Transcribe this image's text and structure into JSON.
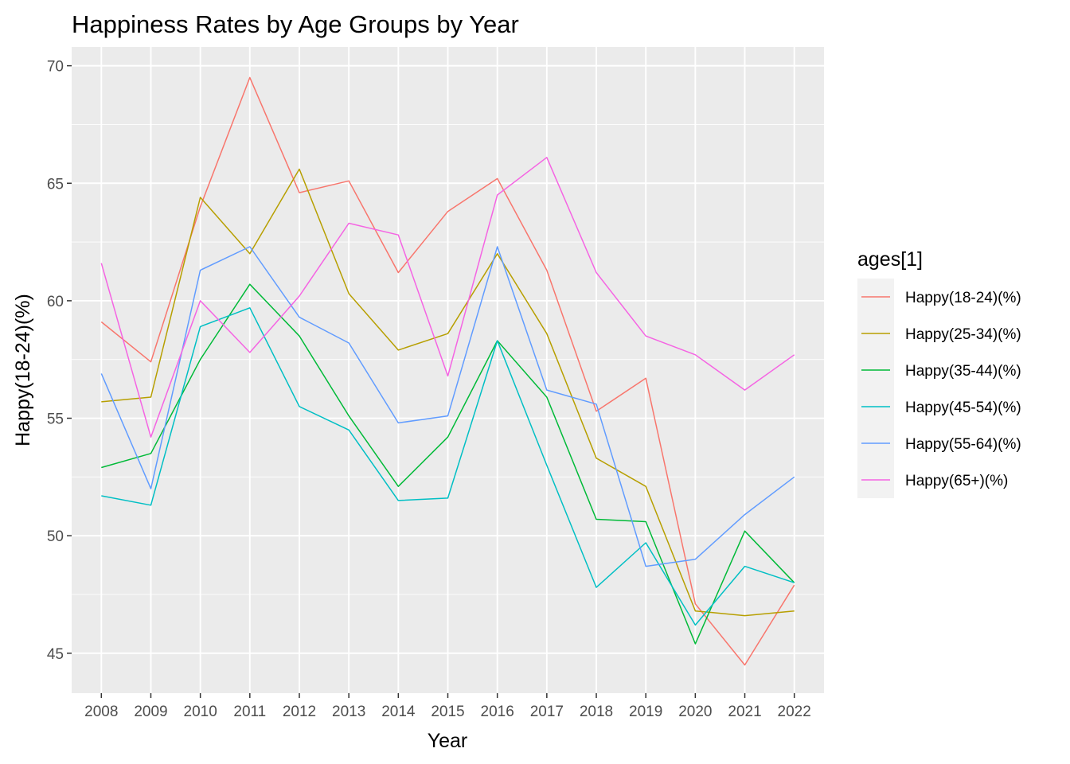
{
  "chart_data": {
    "type": "line",
    "title": "Happiness Rates by Age Groups by Year",
    "xlabel": "Year",
    "ylabel": "Happy(18-24)(%)",
    "x": [
      2008,
      2009,
      2010,
      2011,
      2012,
      2013,
      2014,
      2015,
      2016,
      2017,
      2018,
      2019,
      2020,
      2021,
      2022
    ],
    "xlim": [
      2007.4,
      2022.6
    ],
    "ylim": [
      43.3,
      70.8
    ],
    "y_ticks": [
      45,
      50,
      55,
      60,
      65,
      70
    ],
    "grid": true,
    "legend": {
      "title": "ages[1]",
      "position": "right"
    },
    "series": [
      {
        "name": "Happy(18-24)(%)",
        "color": "#F8766D",
        "values": [
          59.1,
          57.4,
          64.0,
          69.5,
          64.6,
          65.1,
          61.2,
          63.8,
          65.2,
          61.3,
          55.3,
          56.7,
          47.1,
          44.5,
          47.9
        ]
      },
      {
        "name": "Happy(25-34)(%)",
        "color": "#B79F00",
        "values": [
          55.7,
          55.9,
          64.4,
          62.0,
          65.6,
          60.3,
          57.9,
          58.6,
          62.0,
          58.6,
          53.3,
          52.1,
          46.8,
          46.6,
          46.8
        ]
      },
      {
        "name": "Happy(35-44)(%)",
        "color": "#00BA38",
        "values": [
          52.9,
          53.5,
          57.5,
          60.7,
          58.5,
          55.1,
          52.1,
          54.2,
          58.3,
          55.9,
          50.7,
          50.6,
          45.4,
          50.2,
          48.0
        ]
      },
      {
        "name": "Happy(45-54)(%)",
        "color": "#00BFC4",
        "values": [
          51.7,
          51.3,
          58.9,
          59.7,
          55.5,
          54.5,
          51.5,
          51.6,
          58.3,
          53.0,
          47.8,
          49.7,
          46.2,
          48.7,
          48.0
        ]
      },
      {
        "name": "Happy(55-64)(%)",
        "color": "#619CFF",
        "values": [
          56.9,
          52.0,
          61.3,
          62.3,
          59.3,
          58.2,
          54.8,
          55.1,
          62.3,
          56.2,
          55.6,
          48.7,
          49.0,
          50.9,
          52.5
        ]
      },
      {
        "name": "Happy(65+)(%)",
        "color": "#F564E3",
        "values": [
          61.6,
          54.2,
          60.0,
          57.8,
          60.2,
          63.3,
          62.8,
          56.8,
          64.5,
          66.1,
          61.2,
          58.5,
          57.7,
          56.2,
          57.7
        ]
      }
    ]
  }
}
